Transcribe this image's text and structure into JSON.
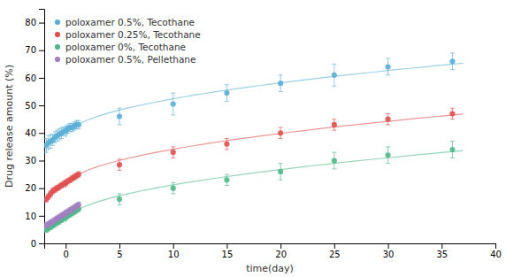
{
  "chart_data": {
    "type": "scatter",
    "xlabel": "time(day)",
    "ylabel": "Drug release amount (%)",
    "xlim": [
      -2,
      40
    ],
    "ylim": [
      0,
      85
    ],
    "xticks": [
      0,
      5,
      10,
      15,
      20,
      25,
      30,
      35,
      40
    ],
    "yticks": [
      0,
      10,
      20,
      30,
      40,
      50,
      60,
      70,
      80
    ],
    "grid": false,
    "legend": "upper left",
    "series": [
      {
        "name": "poloxamer 0.5%, Tecothane",
        "type": "scatter",
        "color": "#5bafd6",
        "marker": "circle",
        "x": [
          -1.8,
          -1.6,
          -1.4,
          -1.2,
          -1.0,
          -0.8,
          -0.6,
          -0.4,
          -0.2,
          0.0,
          0.2,
          0.4,
          0.6,
          0.8,
          1.0,
          1.2,
          5,
          10,
          15,
          20,
          25,
          30,
          36
        ],
        "values": [
          35.5,
          36.5,
          37.0,
          37.5,
          38.5,
          39.0,
          39.5,
          40.0,
          40.5,
          41.0,
          41.5,
          42.0,
          42.0,
          42.5,
          43.0,
          43.0,
          46,
          50.5,
          54.5,
          58,
          61,
          64,
          66
        ],
        "errors": [
          2.5,
          2.5,
          2.5,
          2.0,
          2.0,
          2.0,
          2.0,
          2.0,
          1.5,
          1.5,
          1.5,
          1.5,
          1.5,
          1.5,
          1.5,
          1.5,
          3,
          4,
          3,
          3,
          4,
          3,
          3
        ]
      },
      {
        "name": "poloxamer 0.25%, Tecothane",
        "type": "scatter",
        "color": "#e05050",
        "marker": "circle",
        "x": [
          -1.8,
          -1.6,
          -1.4,
          -1.2,
          -1.0,
          -0.8,
          -0.6,
          -0.4,
          -0.2,
          0.0,
          0.2,
          0.4,
          0.6,
          0.8,
          1.0,
          1.2,
          5,
          10,
          15,
          20,
          25,
          30,
          36
        ],
        "values": [
          16.0,
          17.0,
          18.0,
          19.0,
          19.5,
          20.0,
          20.5,
          21.0,
          21.5,
          22.0,
          22.5,
          23.0,
          23.5,
          24.0,
          24.5,
          25.0,
          28.5,
          33.0,
          36.0,
          40.0,
          43.0,
          45.0,
          47.0
        ],
        "errors": [
          1.0,
          1.0,
          1.0,
          1.0,
          1.0,
          1.0,
          1.0,
          1.0,
          1.0,
          1.0,
          1.0,
          1.0,
          1.0,
          1.0,
          1.0,
          1.0,
          2,
          2,
          2,
          2,
          2,
          2,
          2
        ]
      },
      {
        "name": "poloxamer 0%, Tecothane",
        "type": "scatter",
        "color": "#50b888",
        "marker": "circle",
        "x": [
          -1.8,
          -1.6,
          -1.4,
          -1.2,
          -1.0,
          -0.8,
          -0.6,
          -0.4,
          -0.2,
          0.0,
          0.2,
          0.4,
          0.6,
          0.8,
          1.0,
          1.2,
          5,
          10,
          15,
          20,
          25,
          30,
          36
        ],
        "values": [
          5.0,
          5.5,
          6.0,
          6.5,
          7.0,
          7.5,
          8.0,
          8.5,
          9.0,
          9.5,
          10.0,
          10.5,
          11.0,
          11.5,
          12.0,
          12.5,
          16.0,
          20.0,
          23.0,
          26.0,
          30.0,
          32.0,
          34.0
        ],
        "errors": [
          1.0,
          1.0,
          1.0,
          1.0,
          1.0,
          1.0,
          1.0,
          1.0,
          1.0,
          1.0,
          1.0,
          1.0,
          1.0,
          1.0,
          1.0,
          1.0,
          2,
          2,
          2,
          3,
          3,
          3,
          3
        ]
      },
      {
        "name": "poloxamer 0.5%, Pellethane",
        "type": "scatter",
        "color": "#a080c0",
        "marker": "circle",
        "x": [
          -1.8,
          -1.6,
          -1.4,
          -1.2,
          -1.0,
          -0.8,
          -0.6,
          -0.4,
          -0.2,
          0.0,
          0.2,
          0.4,
          0.6,
          0.8,
          1.0,
          1.2
        ],
        "values": [
          6.5,
          7.0,
          7.5,
          8.0,
          8.5,
          9.0,
          9.5,
          10.0,
          10.5,
          11.0,
          11.5,
          12.0,
          12.5,
          13.0,
          13.5,
          14.0
        ],
        "errors": [
          1.0,
          1.0,
          1.0,
          1.0,
          1.0,
          1.0,
          1.0,
          1.0,
          1.0,
          1.0,
          1.0,
          1.0,
          1.0,
          1.0,
          1.0,
          1.0
        ]
      },
      {
        "type": "line",
        "color": "#5bafd6",
        "line_style": "solid",
        "x": [
          0,
          0.25,
          0.5,
          1,
          2,
          3,
          4,
          5,
          6,
          7,
          8,
          9,
          10,
          11,
          12,
          13,
          14,
          15,
          16,
          17,
          18,
          19,
          20,
          21,
          22,
          23,
          24,
          25,
          26,
          27,
          28,
          29,
          30,
          31,
          32,
          33,
          34,
          35,
          36,
          37
        ],
        "values": [
          38.43,
          40.64,
          41.55,
          42.85,
          44.68,
          46.08,
          47.27,
          48.31,
          49.25,
          50.12,
          50.93,
          51.69,
          52.4,
          53.09,
          53.74,
          54.36,
          54.97,
          55.55,
          56.11,
          56.65,
          57.18,
          57.69,
          58.2,
          58.68,
          59.16,
          59.63,
          60.08,
          60.53,
          60.97,
          61.4,
          61.82,
          62.23,
          62.64,
          63.04,
          63.43,
          63.82,
          64.2,
          64.58,
          64.95,
          65.32
        ]
      },
      {
        "type": "line",
        "color": "#e05050",
        "line_style": "solid",
        "x": [
          0,
          0.25,
          0.5,
          1,
          2,
          3,
          4,
          5,
          6,
          7,
          8,
          9,
          10,
          11,
          12,
          13,
          14,
          15,
          16,
          17,
          18,
          19,
          20,
          21,
          22,
          23,
          24,
          25,
          26,
          27,
          28,
          29,
          30,
          31,
          32,
          33,
          34,
          35,
          36,
          37
        ],
        "values": [
          20.29,
          22.48,
          23.38,
          24.67,
          26.48,
          27.87,
          29.04,
          30.07,
          31.0,
          31.86,
          32.66,
          33.41,
          34.12,
          34.8,
          35.44,
          36.06,
          36.66,
          37.23,
          37.79,
          38.32,
          38.85,
          39.35,
          39.85,
          40.33,
          40.8,
          41.27,
          41.72,
          42.16,
          42.59,
          43.02,
          43.43,
          43.84,
          44.25,
          44.64,
          45.03,
          45.41,
          45.79,
          46.16,
          46.53,
          46.89
        ]
      },
      {
        "type": "line",
        "color": "#50b888",
        "line_style": "solid",
        "x": [
          0,
          0.25,
          0.5,
          1,
          2,
          3,
          4,
          5,
          6,
          7,
          8,
          9,
          10,
          11,
          12,
          13,
          14,
          15,
          16,
          17,
          18,
          19,
          20,
          21,
          22,
          23,
          24,
          25,
          26,
          27,
          28,
          29,
          30,
          31,
          32,
          33,
          34,
          35,
          36,
          37
        ],
        "values": [
          7.76,
          9.89,
          10.77,
          12.01,
          13.77,
          15.12,
          16.26,
          17.26,
          18.17,
          19.0,
          19.78,
          20.51,
          21.2,
          21.85,
          22.48,
          23.08,
          23.66,
          24.22,
          24.76,
          25.28,
          25.79,
          26.28,
          26.76,
          27.23,
          27.69,
          28.14,
          28.58,
          29.01,
          29.43,
          29.84,
          30.24,
          30.64,
          31.03,
          31.42,
          31.8,
          32.17,
          32.54,
          32.9,
          33.25,
          33.61
        ]
      }
    ]
  }
}
